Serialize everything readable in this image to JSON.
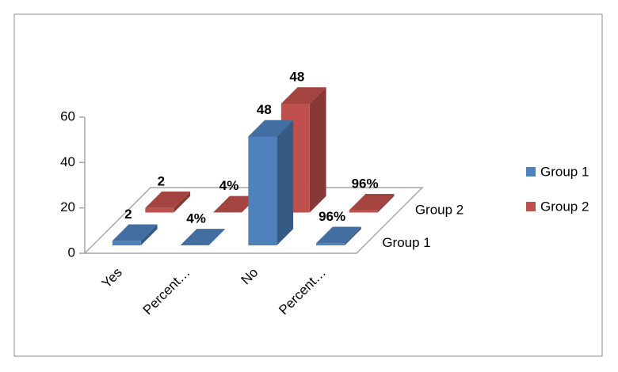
{
  "chart_data": {
    "type": "bar3d",
    "categories": [
      "Yes",
      "Percent…",
      "No",
      "Percent…"
    ],
    "series": [
      {
        "name": "Group 1",
        "color": "#4f81bd",
        "values": [
          2,
          0.04,
          48,
          0.96
        ],
        "value_labels": [
          "2",
          "4%",
          "48",
          "96%"
        ]
      },
      {
        "name": "Group 2",
        "color": "#c0504d",
        "values": [
          2,
          0.04,
          48,
          0.96
        ],
        "value_labels": [
          "2",
          "4%",
          "48",
          "96%"
        ]
      }
    ],
    "ylim": [
      0,
      60
    ],
    "yticks": [
      0,
      20,
      40,
      60
    ],
    "legend": "right"
  }
}
